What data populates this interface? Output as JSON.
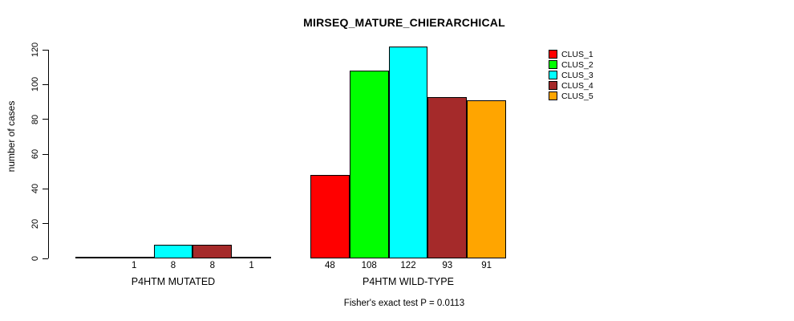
{
  "chart_data": {
    "type": "bar",
    "title": "MIRSEQ_MATURE_CHIERARCHICAL",
    "ylabel": "number of cases",
    "xlabel": "",
    "ylim": [
      0,
      120
    ],
    "yticks": [
      0,
      20,
      40,
      60,
      80,
      100,
      120
    ],
    "grid": false,
    "legend_position": "top-right",
    "categories": [
      "P4HTM MUTATED",
      "P4HTM WILD-TYPE"
    ],
    "series": [
      {
        "name": "CLUS_1",
        "color": "#ff0000",
        "values": [
          0,
          48
        ]
      },
      {
        "name": "CLUS_2",
        "color": "#00ff00",
        "values": [
          1,
          108
        ]
      },
      {
        "name": "CLUS_3",
        "color": "#00ffff",
        "values": [
          8,
          122
        ]
      },
      {
        "name": "CLUS_4",
        "color": "#a52a2a",
        "values": [
          8,
          93
        ]
      },
      {
        "name": "CLUS_5",
        "color": "#ffa500",
        "values": [
          1,
          91
        ]
      }
    ],
    "bar_value_labels": [
      [
        "",
        "1",
        "8",
        "8",
        "1"
      ],
      [
        "48",
        "108",
        "122",
        "93",
        "91"
      ]
    ],
    "annotation": "Fisher's exact test P = 0.0113"
  }
}
